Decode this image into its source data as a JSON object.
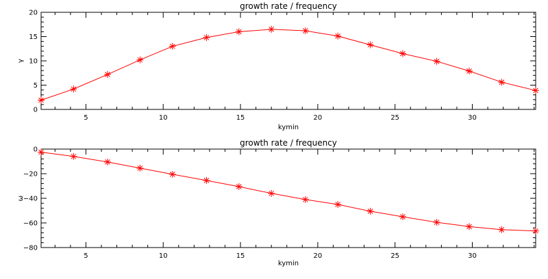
{
  "chart_data": [
    {
      "type": "line",
      "title": "growth rate / frequency",
      "xlabel": "kymin",
      "ylabel": "γ",
      "xlim": [
        2.1,
        34.1
      ],
      "ylim": [
        0,
        20
      ],
      "xticks": [
        5,
        10,
        15,
        20,
        25,
        30
      ],
      "yticks": [
        0,
        5,
        10,
        15,
        20
      ],
      "grid": false,
      "line_color": "#ff0000",
      "marker": "asterisk",
      "x": [
        2.1,
        4.2,
        6.4,
        8.5,
        10.6,
        12.8,
        14.9,
        17.0,
        19.2,
        21.3,
        23.4,
        25.5,
        27.7,
        29.8,
        31.9,
        34.1
      ],
      "values": [
        1.9,
        4.2,
        7.2,
        10.2,
        13.0,
        14.8,
        16.0,
        16.5,
        16.2,
        15.1,
        13.3,
        11.5,
        9.9,
        7.9,
        5.6,
        3.9
      ]
    },
    {
      "type": "line",
      "title": "growth rate / frequency",
      "xlabel": "kymin",
      "ylabel": "ω",
      "xlim": [
        2.1,
        34.1
      ],
      "ylim": [
        -80,
        0
      ],
      "xticks": [
        5,
        10,
        15,
        20,
        25,
        30
      ],
      "yticks": [
        0,
        -20,
        -40,
        -60,
        -80
      ],
      "grid": false,
      "line_color": "#ff0000",
      "marker": "asterisk",
      "x": [
        2.1,
        4.2,
        6.4,
        8.5,
        10.6,
        12.8,
        14.9,
        17.0,
        19.2,
        21.3,
        23.4,
        25.5,
        27.7,
        29.8,
        31.9,
        34.1
      ],
      "values": [
        -2.5,
        -6,
        -10.5,
        -15.5,
        -20.5,
        -25.5,
        -30.5,
        -36,
        -41,
        -45,
        -50.5,
        -55,
        -59.5,
        -63,
        -65.5,
        -66.5
      ]
    }
  ]
}
